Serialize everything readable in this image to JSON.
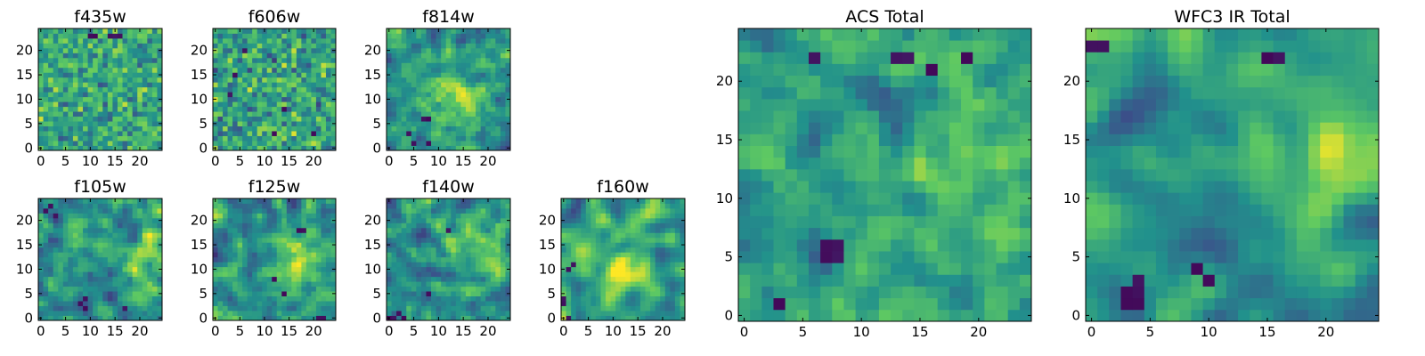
{
  "figure": {
    "colormap": "viridis",
    "colormap_stops": [
      "#440154",
      "#3b528b",
      "#21918c",
      "#5ec962",
      "#fde725"
    ]
  },
  "chart_data": [
    {
      "id": "f435w",
      "type": "heatmap",
      "title": "f435w",
      "shape": [
        25,
        25
      ],
      "xlim": [
        -0.5,
        24.5
      ],
      "ylim": [
        -0.5,
        24.5
      ],
      "xticks": [
        0,
        5,
        10,
        15,
        20
      ],
      "yticks": [
        0,
        5,
        10,
        15,
        20
      ],
      "seed": 435,
      "mean": 0.6,
      "spread": 0.26,
      "smooth": 0,
      "hotspot": [],
      "outliers": [
        [
          10,
          23
        ],
        [
          11,
          23
        ],
        [
          14,
          23
        ],
        [
          15,
          23
        ],
        [
          16,
          23
        ]
      ]
    },
    {
      "id": "f606w",
      "type": "heatmap",
      "title": "f606w",
      "shape": [
        25,
        25
      ],
      "xlim": [
        -0.5,
        24.5
      ],
      "ylim": [
        -0.5,
        24.5
      ],
      "xticks": [
        0,
        5,
        10,
        15,
        20
      ],
      "yticks": [
        0,
        5,
        10,
        15,
        20
      ],
      "seed": 606,
      "mean": 0.58,
      "spread": 0.28,
      "smooth": 0,
      "hotspot": [],
      "outliers": [
        [
          4,
          15
        ],
        [
          3,
          11
        ],
        [
          14,
          8
        ],
        [
          20,
          3
        ],
        [
          12,
          3
        ],
        [
          6,
          20
        ]
      ]
    },
    {
      "id": "f814w",
      "type": "heatmap",
      "title": "f814w",
      "shape": [
        25,
        25
      ],
      "xlim": [
        -0.5,
        24.5
      ],
      "ylim": [
        -0.5,
        24.5
      ],
      "xticks": [
        0,
        5,
        10,
        15,
        20
      ],
      "yticks": [
        0,
        5,
        10,
        15,
        20
      ],
      "seed": 814,
      "mean": 0.52,
      "spread": 0.3,
      "smooth": 1,
      "hotspot": [
        12,
        10,
        0.25
      ],
      "outliers": [
        [
          7,
          6
        ],
        [
          8,
          6
        ],
        [
          4,
          3
        ],
        [
          5,
          1
        ],
        [
          8,
          1
        ]
      ]
    },
    {
      "id": "f105w",
      "type": "heatmap",
      "title": "f105w",
      "shape": [
        25,
        25
      ],
      "xlim": [
        -0.5,
        24.5
      ],
      "ylim": [
        -0.5,
        24.5
      ],
      "xticks": [
        0,
        5,
        10,
        15,
        20
      ],
      "yticks": [
        0,
        5,
        10,
        15,
        20
      ],
      "seed": 105,
      "mean": 0.48,
      "spread": 0.3,
      "smooth": 1,
      "hotspot": [
        22,
        13,
        0.3
      ],
      "outliers": [
        [
          1,
          22
        ],
        [
          2,
          23
        ],
        [
          3,
          21
        ],
        [
          8,
          3
        ],
        [
          9,
          2
        ],
        [
          9,
          4
        ],
        [
          17,
          2
        ]
      ]
    },
    {
      "id": "f125w",
      "type": "heatmap",
      "title": "f125w",
      "shape": [
        25,
        25
      ],
      "xlim": [
        -0.5,
        24.5
      ],
      "ylim": [
        -0.5,
        24.5
      ],
      "xticks": [
        0,
        5,
        10,
        15,
        20
      ],
      "yticks": [
        0,
        5,
        10,
        15,
        20
      ],
      "seed": 125,
      "mean": 0.52,
      "spread": 0.3,
      "smooth": 1,
      "hotspot": [
        18,
        12,
        0.2
      ],
      "outliers": [
        [
          17,
          18
        ],
        [
          18,
          18
        ],
        [
          12,
          8
        ],
        [
          14,
          5
        ],
        [
          21,
          0
        ],
        [
          22,
          0
        ]
      ]
    },
    {
      "id": "f140w",
      "type": "heatmap",
      "title": "f140w",
      "shape": [
        25,
        25
      ],
      "xlim": [
        -0.5,
        24.5
      ],
      "ylim": [
        -0.5,
        24.5
      ],
      "xticks": [
        0,
        5,
        10,
        15,
        20
      ],
      "yticks": [
        0,
        5,
        10,
        15,
        20
      ],
      "seed": 140,
      "mean": 0.5,
      "spread": 0.3,
      "smooth": 1,
      "hotspot": [
        20,
        14,
        0.25
      ],
      "outliers": [
        [
          0,
          0
        ],
        [
          1,
          0
        ],
        [
          2,
          1
        ],
        [
          3,
          0
        ],
        [
          8,
          5
        ],
        [
          12,
          18
        ]
      ]
    },
    {
      "id": "f160w",
      "type": "heatmap",
      "title": "f160w",
      "shape": [
        25,
        25
      ],
      "xlim": [
        -0.5,
        24.5
      ],
      "ylim": [
        -0.5,
        24.5
      ],
      "xticks": [
        0,
        5,
        10,
        15,
        20
      ],
      "yticks": [
        0,
        5,
        10,
        15,
        20
      ],
      "seed": 160,
      "mean": 0.55,
      "spread": 0.26,
      "smooth": 2,
      "hotspot": [
        14,
        12,
        0.3
      ],
      "outliers": [
        [
          0,
          4
        ],
        [
          0,
          3
        ],
        [
          1,
          0
        ],
        [
          1,
          10
        ],
        [
          2,
          11
        ]
      ]
    },
    {
      "id": "acs-total",
      "type": "heatmap",
      "title": "ACS Total",
      "shape": [
        25,
        25
      ],
      "xlim": [
        -0.5,
        24.5
      ],
      "ylim": [
        -0.5,
        24.5
      ],
      "xticks": [
        0,
        5,
        10,
        15,
        20
      ],
      "yticks": [
        0,
        5,
        10,
        15,
        20
      ],
      "seed": 2100,
      "mean": 0.55,
      "spread": 0.24,
      "smooth": 1,
      "hotspot": [
        22,
        12,
        0.2
      ],
      "outliers": [
        [
          7,
          6
        ],
        [
          8,
          6
        ],
        [
          7,
          5
        ],
        [
          8,
          5
        ],
        [
          3,
          1
        ],
        [
          13,
          22
        ],
        [
          14,
          22
        ],
        [
          16,
          21
        ],
        [
          19,
          22
        ],
        [
          6,
          22
        ]
      ]
    },
    {
      "id": "wfc3-ir-total",
      "type": "heatmap",
      "title": "WFC3 IR Total",
      "shape": [
        25,
        25
      ],
      "xlim": [
        -0.5,
        24.5
      ],
      "ylim": [
        -0.5,
        24.5
      ],
      "xticks": [
        0,
        5,
        10,
        15,
        20
      ],
      "yticks": [
        0,
        5,
        10,
        15,
        20
      ],
      "seed": 3100,
      "mean": 0.52,
      "spread": 0.2,
      "smooth": 2,
      "hotspot": [
        20,
        13,
        0.3
      ],
      "outliers": [
        [
          3,
          2
        ],
        [
          4,
          2
        ],
        [
          3,
          1
        ],
        [
          4,
          1
        ],
        [
          4,
          3
        ],
        [
          0,
          23
        ],
        [
          1,
          23
        ],
        [
          15,
          22
        ],
        [
          16,
          22
        ],
        [
          9,
          4
        ],
        [
          10,
          3
        ]
      ]
    }
  ]
}
